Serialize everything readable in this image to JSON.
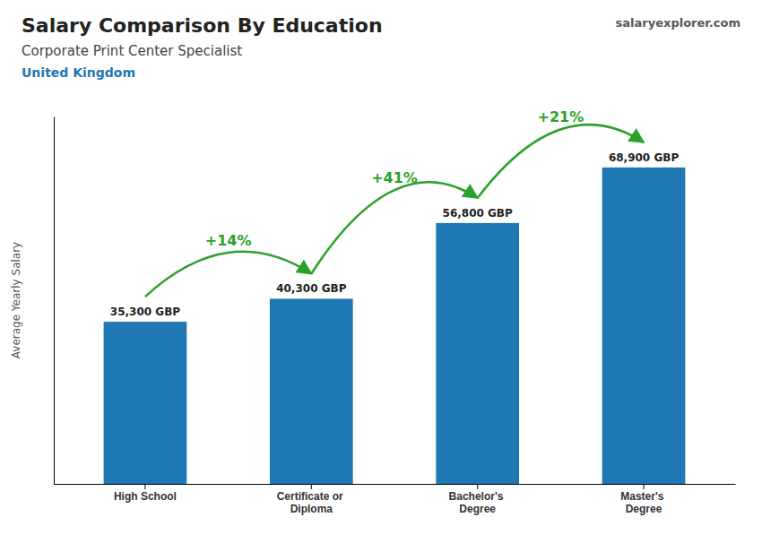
{
  "chart_data": {
    "type": "bar",
    "title": "Salary Comparison By Education",
    "subtitle": "Corporate Print Center Specialist",
    "annotations": [
      "United Kingdom",
      "salaryexplorer.com"
    ],
    "ylabel": "Average Yearly Salary",
    "categories": [
      "High School",
      "Certificate or\nDiploma",
      "Bachelor's\nDegree",
      "Master's\nDegree"
    ],
    "values": [
      35300,
      40300,
      56800,
      68900
    ],
    "value_labels": [
      "35,300 GBP",
      "40,300 GBP",
      "56,800 GBP",
      "68,900 GBP"
    ],
    "data_labels": true,
    "pct_changes": [
      null,
      "+14%",
      "+41%",
      "+21%"
    ],
    "ylim": [
      0,
      80000
    ],
    "tick_labels": "x",
    "grid": false
  }
}
